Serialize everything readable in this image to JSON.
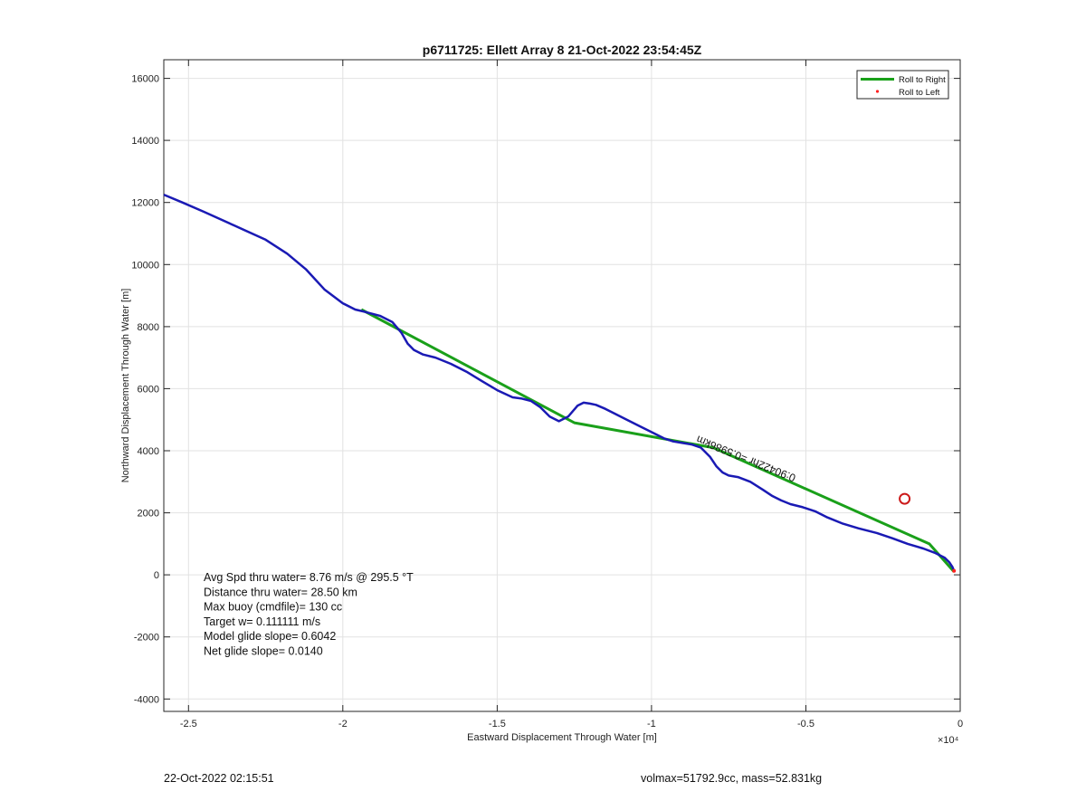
{
  "chart_data": {
    "type": "line",
    "title": "p6711725: Ellett Array 8 21-Oct-2022 23:54:45Z",
    "xlabel": "Eastward Displacement Through Water [m]",
    "ylabel": "Northward Displacement Through Water [m]",
    "x_exponent_label": "×10⁴",
    "xlim": [
      -2.58,
      0
    ],
    "ylim": [
      -4400,
      16600
    ],
    "x_ticks": [
      -2.5,
      -2,
      -1.5,
      -1,
      -0.5,
      0
    ],
    "x_tick_labels": [
      "-2.5",
      "-2",
      "-1.5",
      "-1",
      "-0.5",
      "0"
    ],
    "y_ticks": [
      -4000,
      -2000,
      0,
      2000,
      4000,
      6000,
      8000,
      10000,
      12000,
      14000,
      16000
    ],
    "y_tick_labels": [
      "-4000",
      "-2000",
      "0",
      "2000",
      "4000",
      "6000",
      "8000",
      "10000",
      "12000",
      "14000",
      "16000"
    ],
    "grid": true,
    "legend_position": "top-right",
    "series": [
      {
        "name": "Roll to Right",
        "color": "#1aa01a",
        "x": [
          -1.94,
          -1.25,
          -0.8,
          -0.1,
          -0.02
        ],
        "y": [
          8550,
          4900,
          4100,
          1000,
          100
        ]
      },
      {
        "name": "Roll to Left",
        "color": "#ff2020",
        "x": [
          -0.02
        ],
        "y": [
          130
        ]
      },
      {
        "name": "",
        "color": "#1a1ab4",
        "x": [
          -2.58,
          -2.52,
          -2.45,
          -2.35,
          -2.25,
          -2.18,
          -2.12,
          -2.06,
          -2.0,
          -1.96,
          -1.93,
          -1.88,
          -1.84,
          -1.81,
          -1.79,
          -1.77,
          -1.74,
          -1.7,
          -1.65,
          -1.6,
          -1.55,
          -1.5,
          -1.45,
          -1.42,
          -1.39,
          -1.36,
          -1.33,
          -1.3,
          -1.27,
          -1.24,
          -1.22,
          -1.2,
          -1.18,
          -1.15,
          -1.12,
          -1.08,
          -1.04,
          -1.0,
          -0.96,
          -0.93,
          -0.9,
          -0.87,
          -0.84,
          -0.81,
          -0.79,
          -0.77,
          -0.75,
          -0.72,
          -0.68,
          -0.64,
          -0.61,
          -0.58,
          -0.55,
          -0.51,
          -0.47,
          -0.43,
          -0.38,
          -0.33,
          -0.27,
          -0.22,
          -0.17,
          -0.12,
          -0.08,
          -0.05,
          -0.035,
          -0.025,
          -0.02
        ],
        "y": [
          12250,
          12000,
          11700,
          11250,
          10800,
          10350,
          9850,
          9200,
          8750,
          8550,
          8480,
          8350,
          8150,
          7800,
          7450,
          7250,
          7100,
          7000,
          6800,
          6550,
          6250,
          5950,
          5720,
          5680,
          5600,
          5400,
          5100,
          4950,
          5100,
          5450,
          5550,
          5520,
          5480,
          5350,
          5200,
          5000,
          4800,
          4600,
          4400,
          4300,
          4250,
          4200,
          4100,
          3800,
          3500,
          3300,
          3200,
          3150,
          3000,
          2750,
          2550,
          2400,
          2280,
          2180,
          2050,
          1850,
          1650,
          1500,
          1350,
          1180,
          1000,
          850,
          700,
          550,
          400,
          250,
          130
        ]
      }
    ],
    "annotations": {
      "lines": [
        "Avg Spd thru water=  8.76 m/s @ 295.5 °T",
        "Distance thru water= 28.50 km",
        "Max buoy (cmdfile)= 130 cc",
        "Target w= 0.111111 m/s",
        "Model glide slope= 0.6042",
        "Net glide slope= 0.0140"
      ],
      "rotated_label": "0:90422hr =0.5986km",
      "marker_circle": {
        "x": -0.18,
        "y": 2450,
        "color": "#cc1a1a"
      }
    }
  },
  "footer": {
    "left": "22-Oct-2022 02:15:51",
    "right": "volmax=51792.9cc, mass=52.831kg"
  }
}
